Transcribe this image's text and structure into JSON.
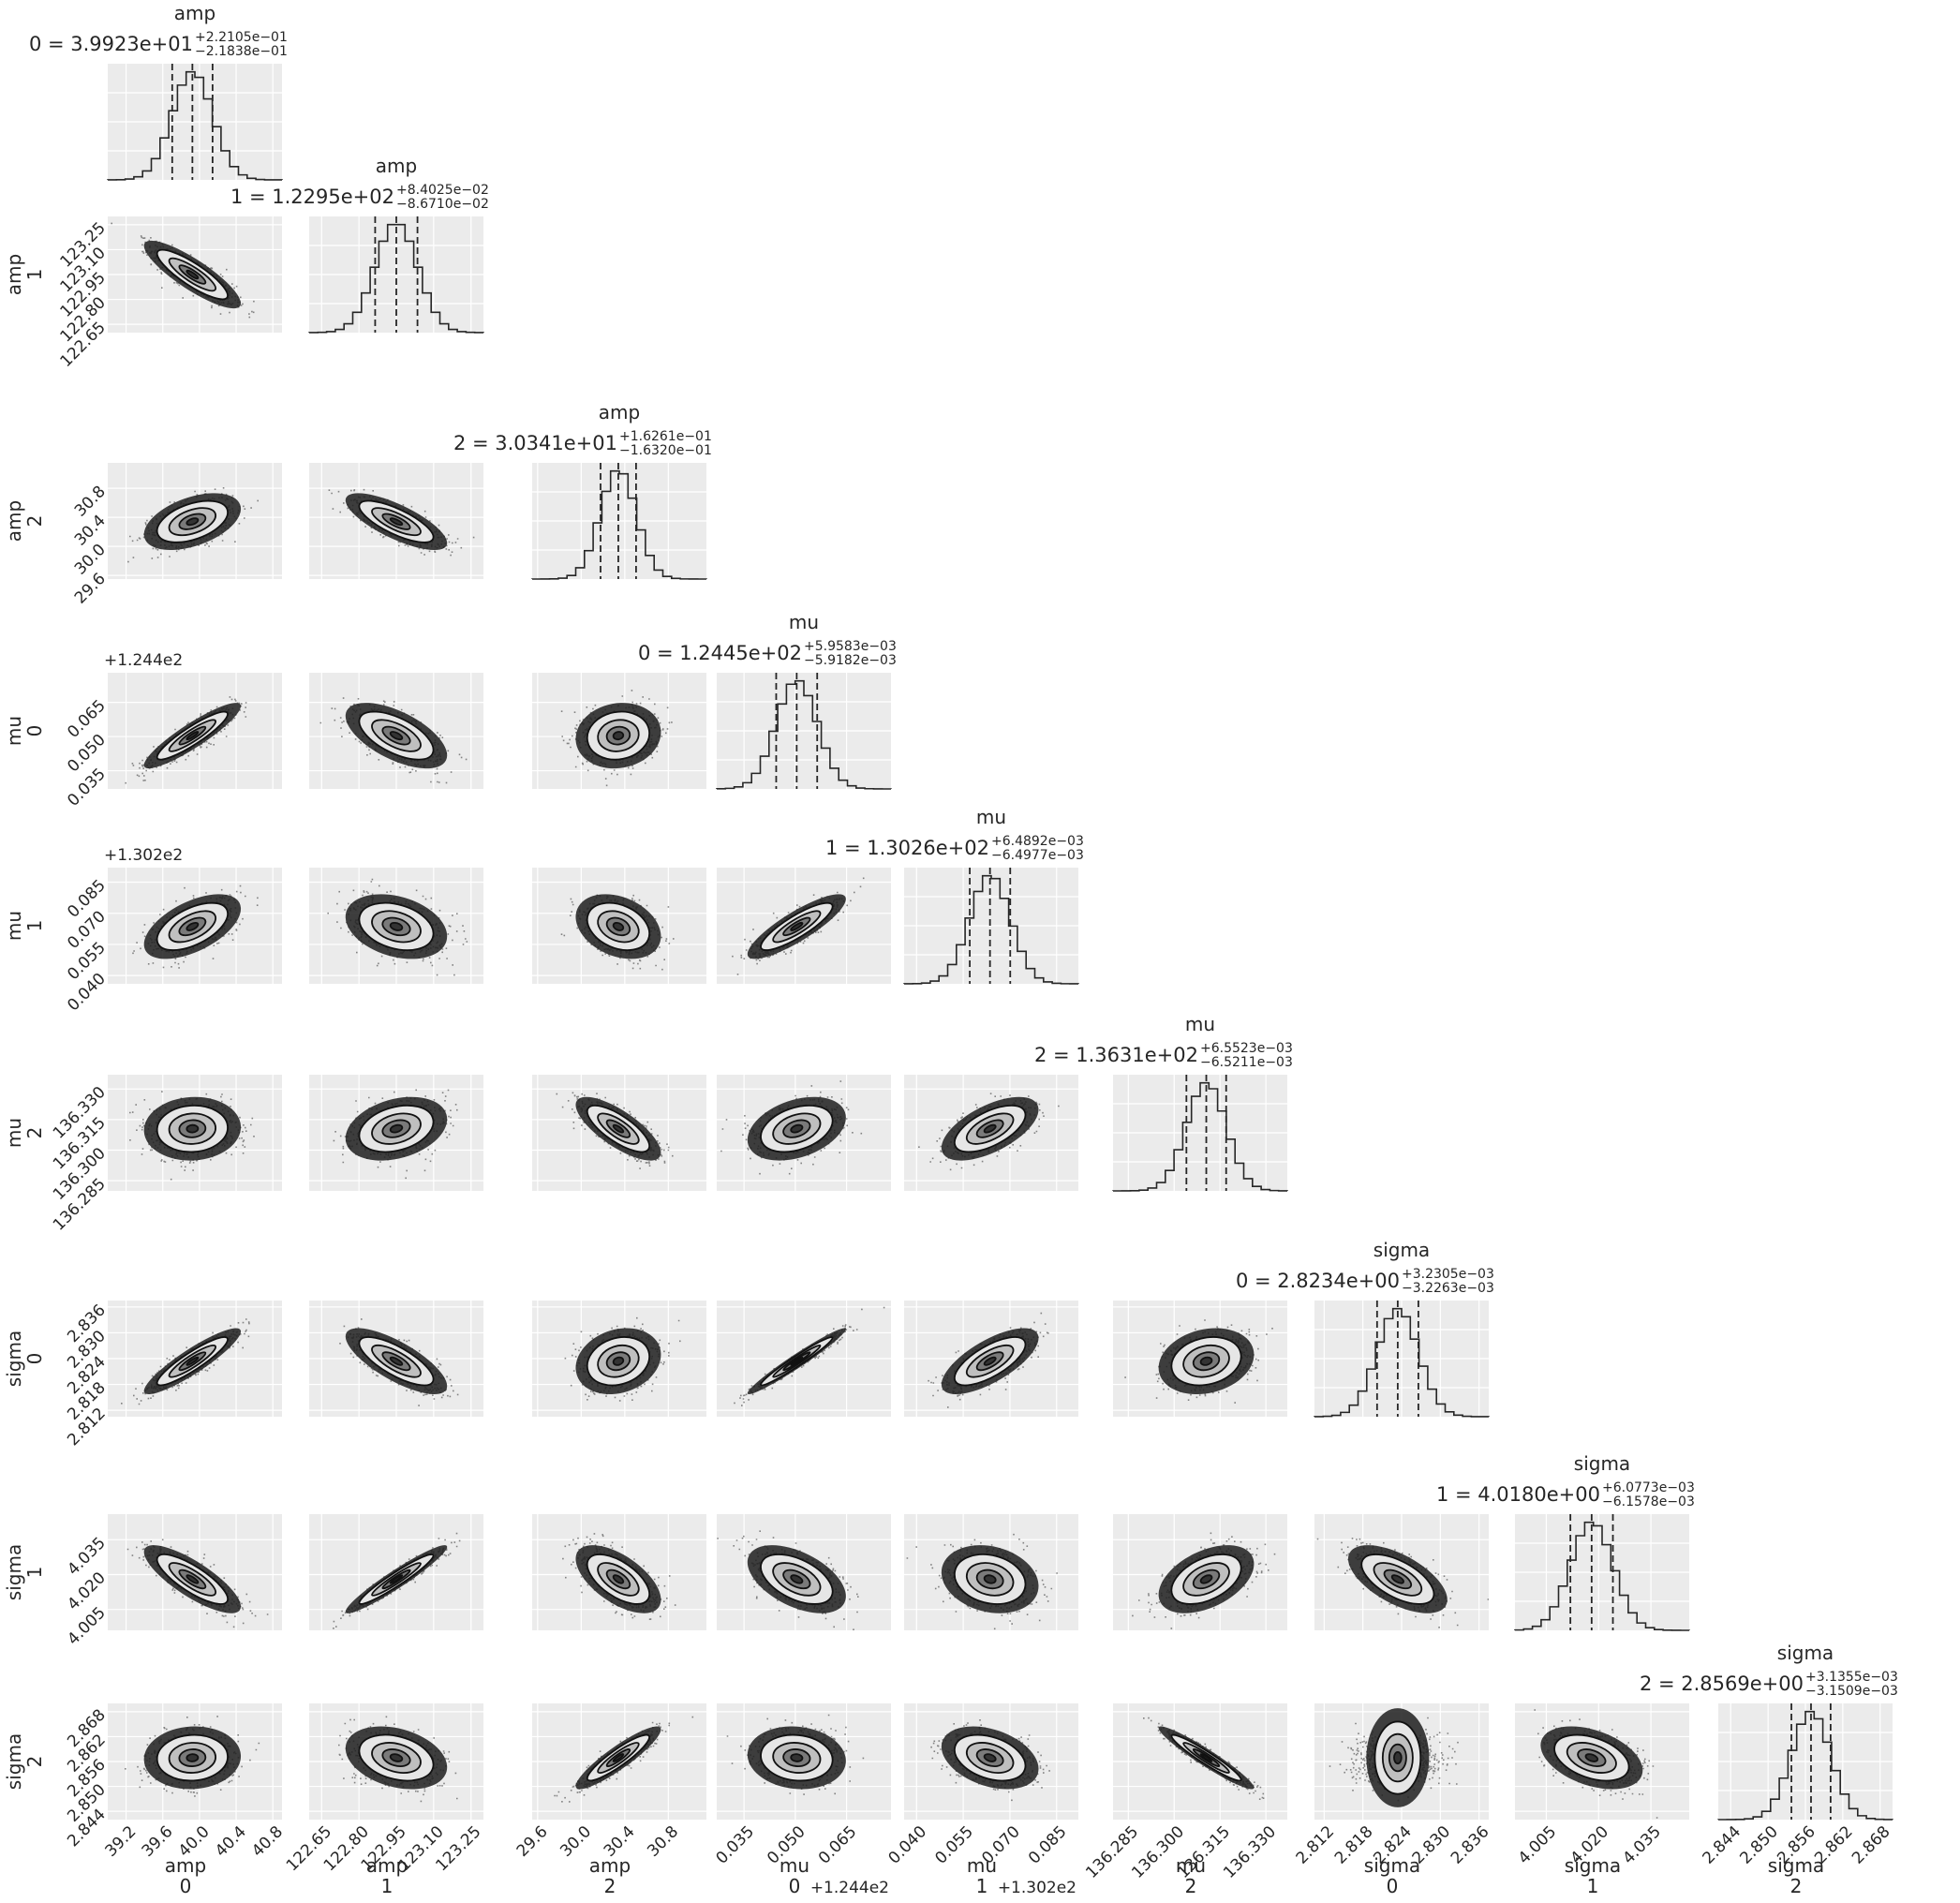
{
  "chart_data": {
    "type": "corner",
    "colors": {
      "panel_bg": "#ebebeb",
      "grid": "#ffffff",
      "ink": "#262626",
      "scatter": "#2b2b2b"
    },
    "grid": true,
    "quantiles": [
      0.16,
      0.5,
      0.84
    ],
    "parameters": [
      {
        "name": "amp",
        "index": "0",
        "title": "0 = 3.9923e+01",
        "plus": "+2.2105e−01",
        "minus": "−2.1838e−01",
        "median": 39.923,
        "sigma": 0.22,
        "range": [
          39.0,
          40.9
        ],
        "ticks": [
          "39.2",
          "39.6",
          "40.0",
          "40.4",
          "40.8"
        ],
        "offset": ""
      },
      {
        "name": "amp",
        "index": "1",
        "title": "1 = 1.2295e+02",
        "plus": "+8.4025e−02",
        "minus": "−8.6710e−02",
        "median": 122.95,
        "sigma": 0.085,
        "range": [
          122.6,
          123.3
        ],
        "ticks": [
          "122.65",
          "122.80",
          "122.95",
          "123.10",
          "123.25"
        ],
        "offset": ""
      },
      {
        "name": "amp",
        "index": "2",
        "title": "2 = 3.0341e+01",
        "plus": "+1.6261e−01",
        "minus": "−1.6320e−01",
        "median": 30.341,
        "sigma": 0.163,
        "range": [
          29.55,
          31.15
        ],
        "ticks": [
          "29.6",
          "30.0",
          "30.4",
          "30.8"
        ],
        "offset": ""
      },
      {
        "name": "mu",
        "index": "0",
        "title": "0 = 1.2445e+02",
        "plus": "+5.9583e−03",
        "minus": "−5.9182e−03",
        "median": 0.0504,
        "sigma": 0.006,
        "range": [
          0.027,
          0.078
        ],
        "ticks": [
          "0.035",
          "0.050",
          "0.065"
        ],
        "offset": "+1.244e2"
      },
      {
        "name": "mu",
        "index": "1",
        "title": "1 = 1.3026e+02",
        "plus": "+6.4892e−03",
        "minus": "−6.4977e−03",
        "median": 0.0636,
        "sigma": 0.0065,
        "range": [
          0.036,
          0.092
        ],
        "ticks": [
          "0.040",
          "0.055",
          "0.070",
          "0.085"
        ],
        "offset": "+1.302e2"
      },
      {
        "name": "mu",
        "index": "2",
        "title": "2 = 1.3631e+02",
        "plus": "+6.5523e−03",
        "minus": "−6.5211e−03",
        "median": 136.3105,
        "sigma": 0.0065,
        "range": [
          136.28,
          136.337
        ],
        "ticks": [
          "136.285",
          "136.300",
          "136.315",
          "136.330"
        ],
        "offset": ""
      },
      {
        "name": "sigma",
        "index": "0",
        "title": "0 = 2.8234e+00",
        "plus": "+3.2305e−03",
        "minus": "−3.2263e−03",
        "median": 2.8234,
        "sigma": 0.0032,
        "range": [
          2.8105,
          2.8375
        ],
        "ticks": [
          "2.812",
          "2.818",
          "2.824",
          "2.830",
          "2.836"
        ],
        "offset": ""
      },
      {
        "name": "sigma",
        "index": "1",
        "title": "1 = 4.0180e+00",
        "plus": "+6.0773e−03",
        "minus": "−6.1578e−03",
        "median": 4.018,
        "sigma": 0.0061,
        "range": [
          3.996,
          4.046
        ],
        "ticks": [
          "4.005",
          "4.020",
          "4.035"
        ],
        "offset": ""
      },
      {
        "name": "sigma",
        "index": "2",
        "title": "2 = 2.8569e+00",
        "plus": "+3.1355e−03",
        "minus": "−3.1509e−03",
        "median": 2.8569,
        "sigma": 0.00315,
        "range": [
          2.842,
          2.87
        ],
        "ticks": [
          "2.844",
          "2.850",
          "2.856",
          "2.862",
          "2.868"
        ],
        "offset": ""
      }
    ],
    "correlations": [
      [
        1,
        -0.85,
        0.45,
        0.9,
        0.55,
        0.05,
        0.9,
        -0.8,
        0.05
      ],
      [
        -0.85,
        1,
        -0.75,
        -0.6,
        -0.3,
        0.3,
        -0.75,
        0.95,
        -0.3
      ],
      [
        0.45,
        -0.75,
        1,
        0.1,
        -0.3,
        -0.75,
        0.2,
        -0.6,
        0.9
      ],
      [
        0.9,
        -0.6,
        0.1,
        1,
        0.85,
        0.35,
        0.97,
        -0.5,
        -0.1
      ],
      [
        0.55,
        -0.3,
        -0.3,
        0.85,
        1,
        0.6,
        0.7,
        -0.2,
        -0.35
      ],
      [
        0.05,
        0.3,
        -0.75,
        0.35,
        0.6,
        1,
        0.2,
        0.45,
        -0.95
      ],
      [
        0.9,
        -0.75,
        0.2,
        0.97,
        0.7,
        0.2,
        1,
        -0.6,
        0.0
      ],
      [
        -0.8,
        0.95,
        -0.6,
        -0.5,
        -0.2,
        0.45,
        -0.6,
        1,
        -0.4
      ],
      [
        0.05,
        -0.3,
        0.9,
        -0.1,
        -0.35,
        -0.95,
        0.0,
        -0.4,
        1
      ]
    ]
  }
}
